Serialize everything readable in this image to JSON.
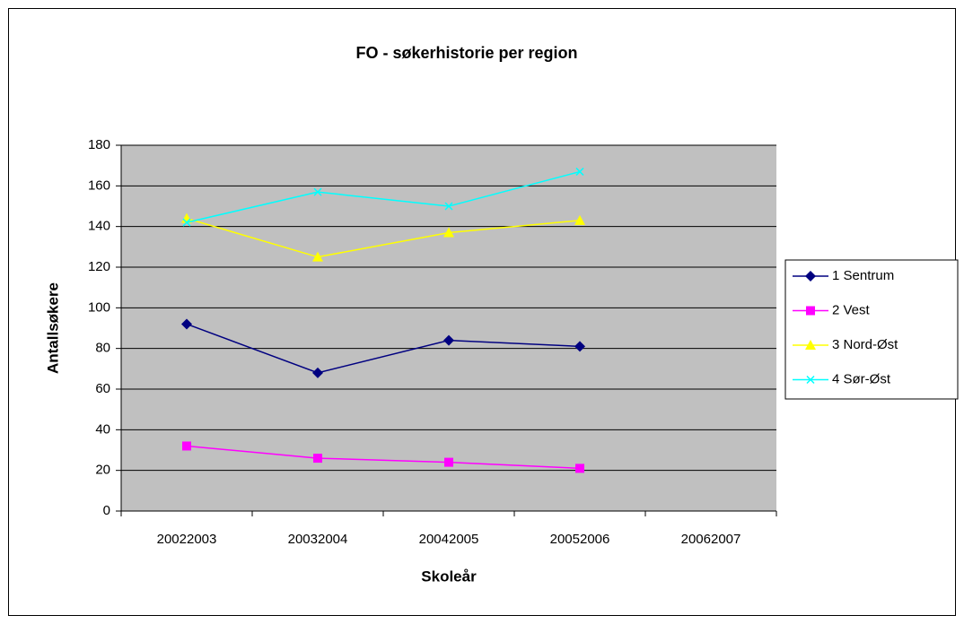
{
  "chart_data": {
    "type": "line",
    "title": "FO - søkerhistorie per region",
    "x_label": "Skoleår",
    "y_label": "Antallsøkere",
    "categories": [
      "20022003",
      "20032004",
      "20042005",
      "20052006",
      "20062007"
    ],
    "series": [
      {
        "name": "1 Sentrum",
        "color": "#000080",
        "marker": "diamond",
        "values": [
          92,
          68,
          84,
          81,
          null
        ]
      },
      {
        "name": "2 Vest",
        "color": "#ff00ff",
        "marker": "square",
        "values": [
          32,
          26,
          24,
          21,
          null
        ]
      },
      {
        "name": "3 Nord-Øst",
        "color": "#ffff00",
        "marker": "triangle",
        "values": [
          144,
          125,
          137,
          143,
          null
        ]
      },
      {
        "name": "4 Sør-Øst",
        "color": "#00ffff",
        "marker": "x",
        "values": [
          142,
          157,
          150,
          167,
          null
        ]
      }
    ],
    "ylim": [
      0,
      180
    ],
    "yticks": [
      0,
      20,
      40,
      60,
      80,
      100,
      120,
      140,
      160,
      180
    ],
    "grid": true,
    "plot_background": "#c0c0c0",
    "legend": "right"
  }
}
